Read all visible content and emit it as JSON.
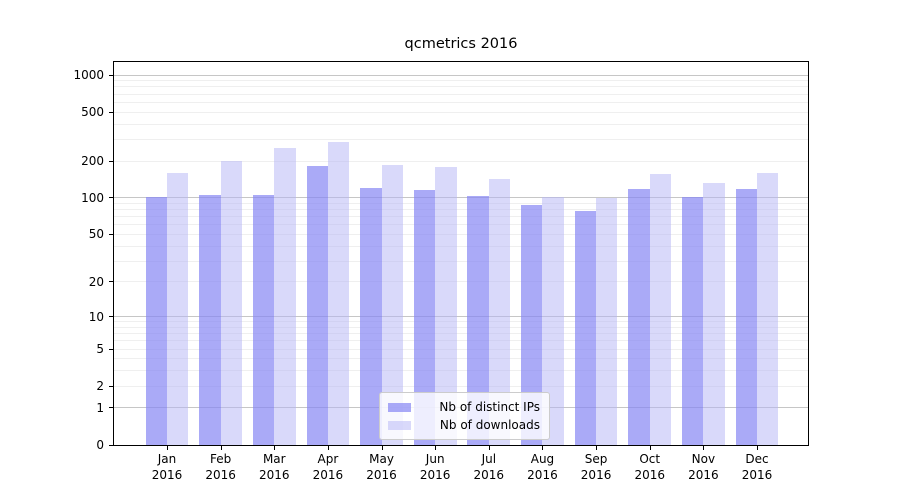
{
  "figure": {
    "background": "#ffffff"
  },
  "chart_data": {
    "type": "bar",
    "title": "qcmetrics 2016",
    "scale": "log1p",
    "grid": true,
    "ylim": [
      0,
      1276
    ],
    "yticks": [
      0,
      1,
      2,
      5,
      10,
      20,
      50,
      100,
      200,
      500,
      1000
    ],
    "major_grid_values": [
      1,
      10,
      100,
      1000
    ],
    "categories": [
      "Jan",
      "Feb",
      "Mar",
      "Apr",
      "May",
      "Jun",
      "Jul",
      "Aug",
      "Sep",
      "Oct",
      "Nov",
      "Dec"
    ],
    "category_year": "2016",
    "series": [
      {
        "name": "Nb of distinct IPs",
        "color": "rgba(134,134,244,0.70)",
        "legend_color": "#aaaaf7",
        "values": [
          101,
          105,
          105,
          182,
          120,
          116,
          104,
          88,
          78,
          119,
          102,
          118
        ]
      },
      {
        "name": "Nb of downloads",
        "color": "rgba(179,179,245,0.50)",
        "legend_color": "#d9d9fa",
        "values": [
          159,
          199,
          254,
          287,
          186,
          180,
          142,
          101,
          100,
          158,
          133,
          160
        ]
      }
    ],
    "legend_location": "lower center",
    "colors": {
      "grid_major": "#c6c6c6",
      "grid_minor": "#efefef",
      "spine": "#000000",
      "text": "#000000"
    }
  }
}
